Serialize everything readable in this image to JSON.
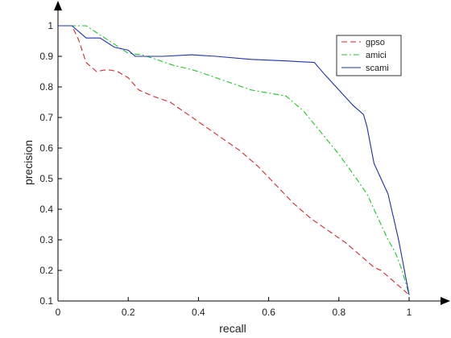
{
  "chart_data": {
    "type": "line",
    "xlabel": "recall",
    "ylabel": "precision",
    "xlim": [
      0,
      1
    ],
    "ylim": [
      0.1,
      1
    ],
    "xticks": [
      "0",
      "0.2",
      "0.4",
      "0.6",
      "0.8",
      "1"
    ],
    "yticks": [
      "0.1",
      "0.2",
      "0.3",
      "0.4",
      "0.5",
      "0.6",
      "0.7",
      "0.8",
      "0.9",
      "1"
    ],
    "grid": false,
    "legend_position": "top-right",
    "series": [
      {
        "name": "gpso",
        "color": "#d62728",
        "dash": "dashed",
        "x": [
          0.0,
          0.04,
          0.06,
          0.08,
          0.11,
          0.13,
          0.15,
          0.17,
          0.2,
          0.23,
          0.27,
          0.32,
          0.37,
          0.42,
          0.47,
          0.52,
          0.57,
          0.62,
          0.67,
          0.72,
          0.77,
          0.82,
          0.84,
          0.86,
          0.88,
          0.9,
          0.92,
          0.94,
          0.96,
          0.98,
          1.0
        ],
        "y": [
          1.0,
          1.0,
          0.95,
          0.88,
          0.85,
          0.855,
          0.855,
          0.85,
          0.83,
          0.79,
          0.77,
          0.75,
          0.71,
          0.67,
          0.63,
          0.59,
          0.54,
          0.48,
          0.42,
          0.37,
          0.33,
          0.29,
          0.27,
          0.25,
          0.23,
          0.21,
          0.2,
          0.18,
          0.16,
          0.14,
          0.12
        ]
      },
      {
        "name": "amici",
        "color": "#22c32e",
        "dash": "dashdot",
        "x": [
          0.0,
          0.04,
          0.06,
          0.08,
          0.12,
          0.16,
          0.2,
          0.24,
          0.28,
          0.33,
          0.37,
          0.4,
          0.45,
          0.5,
          0.55,
          0.6,
          0.65,
          0.7,
          0.75,
          0.8,
          0.85,
          0.88,
          0.9,
          0.92,
          0.94,
          0.96,
          0.98,
          1.0
        ],
        "y": [
          1.0,
          1.0,
          1.0,
          1.0,
          0.97,
          0.94,
          0.91,
          0.905,
          0.89,
          0.87,
          0.86,
          0.85,
          0.83,
          0.81,
          0.79,
          0.78,
          0.77,
          0.72,
          0.65,
          0.58,
          0.5,
          0.45,
          0.4,
          0.35,
          0.3,
          0.26,
          0.2,
          0.12
        ]
      },
      {
        "name": "scami",
        "color": "#1f2fae",
        "dash": "solid",
        "x": [
          0.0,
          0.04,
          0.08,
          0.12,
          0.16,
          0.2,
          0.22,
          0.26,
          0.3,
          0.38,
          0.45,
          0.55,
          0.65,
          0.73,
          0.76,
          0.8,
          0.84,
          0.87,
          0.88,
          0.9,
          0.92,
          0.94,
          0.95,
          0.96,
          0.97,
          0.98,
          0.99,
          1.0
        ],
        "y": [
          1.0,
          1.0,
          0.96,
          0.96,
          0.93,
          0.92,
          0.9,
          0.9,
          0.9,
          0.905,
          0.9,
          0.89,
          0.885,
          0.88,
          0.84,
          0.79,
          0.74,
          0.71,
          0.67,
          0.55,
          0.5,
          0.45,
          0.4,
          0.35,
          0.3,
          0.24,
          0.18,
          0.12
        ]
      }
    ]
  }
}
